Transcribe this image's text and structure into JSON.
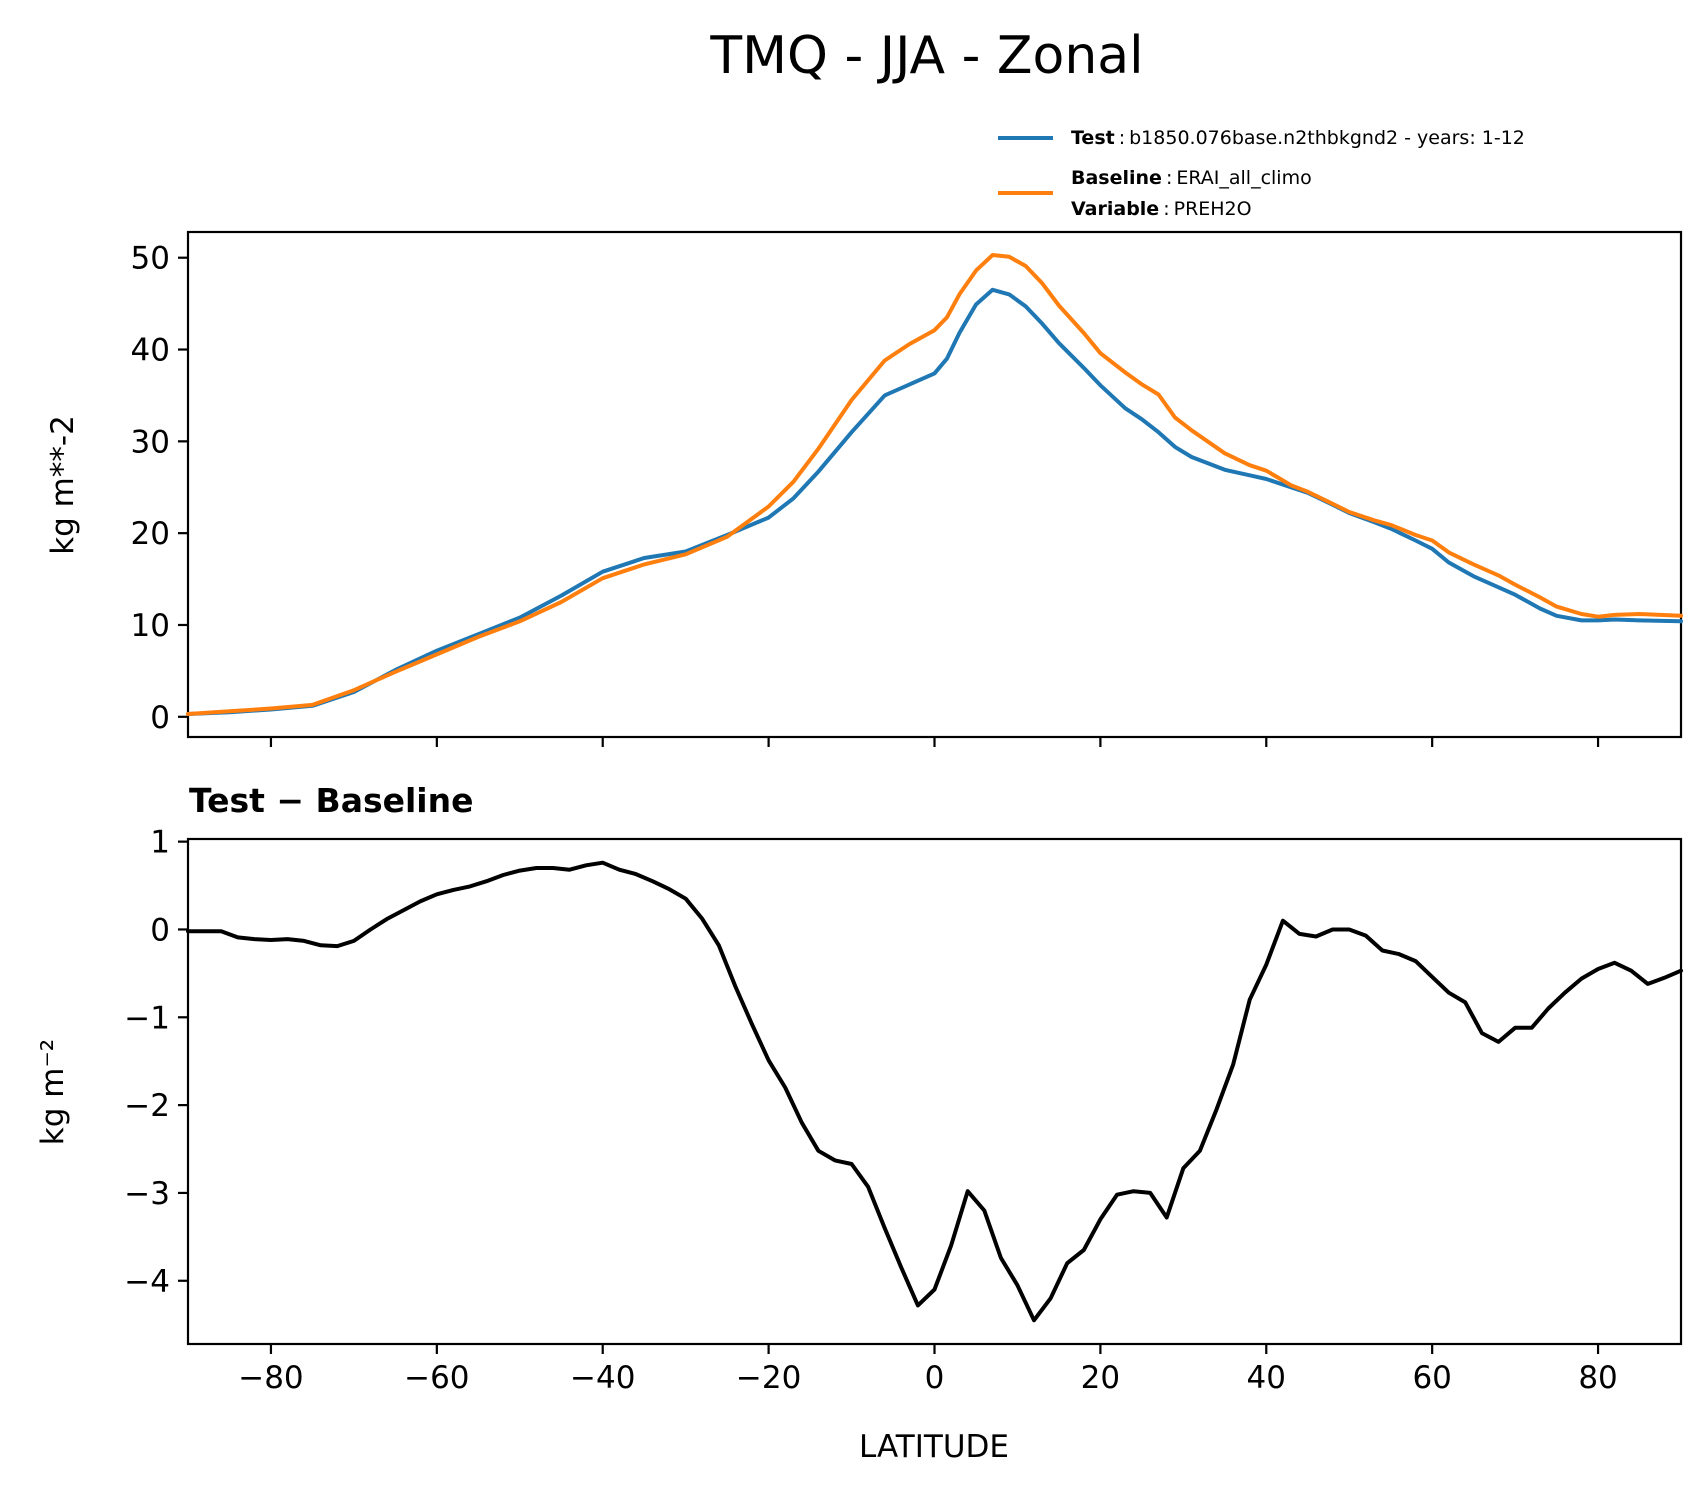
{
  "chart_data": [
    {
      "type": "line",
      "title": "TMQ - JJA - Zonal",
      "ylabel": "kg m**-2",
      "xlabel": "",
      "xlim": [
        -90,
        90
      ],
      "ylim": [
        -2.2,
        52.8
      ],
      "xticks": [
        -80,
        -60,
        -40,
        -20,
        0,
        20,
        40,
        60,
        80
      ],
      "yticks": [
        0,
        10,
        20,
        30,
        40,
        50
      ],
      "ytick_labels": [
        "0",
        "10",
        "20",
        "30",
        "40",
        "50"
      ],
      "grid": false,
      "legend_position": "top-right",
      "legend": [
        {
          "key": "Test",
          "sep": ":",
          "value": "b1850.076base.n2thbkgnd2 - years: 1-12"
        },
        {
          "key": "Baseline",
          "sep": ":",
          "value": "ERAI_all_climo"
        },
        {
          "key": "Variable",
          "sep": ":",
          "value": "PREH2O"
        }
      ],
      "series": [
        {
          "name": "Test",
          "color": "#1f77b4",
          "x": [
            -90,
            -85,
            -80,
            -75,
            -70,
            -65,
            -60,
            -55,
            -50,
            -45,
            -40,
            -35,
            -30,
            -25,
            -20,
            -17,
            -14,
            -10,
            -6,
            -3,
            0,
            1.5,
            3,
            5,
            7,
            9,
            11,
            13,
            15,
            18,
            20,
            23,
            25,
            27,
            29,
            31,
            35,
            38,
            40,
            43,
            45,
            48,
            50,
            53,
            55,
            58,
            60,
            62,
            65,
            68,
            70,
            73,
            75,
            78,
            80,
            82,
            85,
            90
          ],
          "values": [
            0.3,
            0.5,
            0.8,
            1.2,
            2.7,
            5.1,
            7.2,
            9.0,
            10.8,
            13.2,
            15.8,
            17.3,
            18.0,
            19.8,
            21.7,
            23.8,
            26.7,
            31.0,
            35.0,
            36.2,
            37.4,
            39.0,
            41.8,
            44.9,
            46.5,
            46.0,
            44.7,
            42.8,
            40.7,
            38.0,
            36.1,
            33.6,
            32.4,
            31.0,
            29.4,
            28.3,
            26.9,
            26.3,
            25.9,
            25.0,
            24.4,
            23.1,
            22.2,
            21.2,
            20.5,
            19.2,
            18.3,
            16.8,
            15.3,
            14.1,
            13.3,
            11.8,
            11.0,
            10.5,
            10.5,
            10.6,
            10.5,
            10.4
          ]
        },
        {
          "name": "Baseline",
          "color": "#ff7f0e",
          "x": [
            -90,
            -85,
            -80,
            -75,
            -70,
            -65,
            -60,
            -55,
            -50,
            -45,
            -40,
            -35,
            -30,
            -25,
            -20,
            -17,
            -14,
            -10,
            -6,
            -3,
            0,
            1.5,
            3,
            5,
            7,
            9,
            11,
            13,
            15,
            18,
            20,
            23,
            25,
            27,
            29,
            31,
            35,
            38,
            40,
            43,
            45,
            48,
            50,
            53,
            55,
            58,
            60,
            62,
            65,
            68,
            70,
            73,
            75,
            78,
            80,
            82,
            85,
            90
          ],
          "values": [
            0.3,
            0.6,
            0.9,
            1.3,
            2.9,
            4.9,
            6.8,
            8.7,
            10.4,
            12.5,
            15.1,
            16.6,
            17.7,
            19.6,
            22.9,
            25.6,
            29.2,
            34.5,
            38.8,
            40.6,
            42.1,
            43.5,
            46.0,
            48.6,
            50.3,
            50.1,
            49.1,
            47.2,
            44.8,
            41.8,
            39.6,
            37.5,
            36.2,
            35.1,
            32.6,
            31.2,
            28.7,
            27.4,
            26.8,
            25.2,
            24.5,
            23.2,
            22.3,
            21.4,
            20.9,
            19.8,
            19.2,
            17.9,
            16.6,
            15.4,
            14.4,
            13.0,
            12.0,
            11.2,
            10.9,
            11.1,
            11.2,
            11.0
          ]
        }
      ]
    },
    {
      "type": "line",
      "title": "Test − Baseline",
      "ylabel": "kg m⁻²",
      "xlabel": "LATITUDE",
      "xlim": [
        -90,
        90
      ],
      "ylim": [
        -4.72,
        1.03
      ],
      "xticks": [
        -80,
        -60,
        -40,
        -20,
        0,
        20,
        40,
        60,
        80
      ],
      "xtick_labels": [
        "−80",
        "−60",
        "−40",
        "−20",
        "0",
        "20",
        "40",
        "60",
        "80"
      ],
      "yticks": [
        1,
        0,
        -1,
        -2,
        -3,
        -4
      ],
      "ytick_labels": [
        "1",
        "0",
        "−1",
        "−2",
        "−3",
        "−4"
      ],
      "grid": false,
      "series": [
        {
          "name": "Test − Baseline",
          "color": "#000000",
          "x": [
            -90,
            -86,
            -84,
            -82,
            -80,
            -78,
            -76,
            -74,
            -72,
            -70,
            -68,
            -66,
            -64,
            -62,
            -60,
            -58,
            -56,
            -54,
            -52,
            -50,
            -48,
            -46,
            -44,
            -42,
            -40,
            -38,
            -36,
            -34,
            -32,
            -30,
            -28,
            -26,
            -24,
            -22,
            -20,
            -18,
            -16,
            -14,
            -12,
            -10,
            -8,
            -6,
            -4,
            -2,
            0,
            2,
            4,
            6,
            8,
            10,
            12,
            14,
            16,
            18,
            20,
            22,
            24,
            26,
            28,
            30,
            32,
            34,
            36,
            38,
            40,
            42,
            44,
            46,
            48,
            50,
            52,
            54,
            56,
            58,
            60,
            62,
            64,
            66,
            68,
            70,
            72,
            74,
            76,
            78,
            80,
            82,
            84,
            86,
            88,
            90
          ],
          "values": [
            -0.02,
            -0.02,
            -0.09,
            -0.11,
            -0.12,
            -0.11,
            -0.13,
            -0.18,
            -0.19,
            -0.13,
            0.0,
            0.12,
            0.22,
            0.32,
            0.4,
            0.45,
            0.49,
            0.55,
            0.62,
            0.67,
            0.7,
            0.7,
            0.68,
            0.73,
            0.76,
            0.68,
            0.63,
            0.55,
            0.46,
            0.35,
            0.12,
            -0.18,
            -0.65,
            -1.08,
            -1.49,
            -1.8,
            -2.2,
            -2.52,
            -2.63,
            -2.67,
            -2.93,
            -3.4,
            -3.85,
            -4.28,
            -4.1,
            -3.6,
            -2.98,
            -3.2,
            -3.74,
            -4.05,
            -4.45,
            -4.2,
            -3.8,
            -3.65,
            -3.3,
            -3.02,
            -2.98,
            -3.0,
            -3.28,
            -2.72,
            -2.52,
            -2.05,
            -1.54,
            -0.8,
            -0.4,
            0.1,
            -0.05,
            -0.08,
            0.0,
            0.0,
            -0.07,
            -0.24,
            -0.28,
            -0.36,
            -0.54,
            -0.72,
            -0.83,
            -1.18,
            -1.28,
            -1.12,
            -1.12,
            -0.9,
            -0.72,
            -0.56,
            -0.45,
            -0.38,
            -0.47,
            -0.62,
            -0.55,
            -0.47
          ]
        }
      ]
    }
  ]
}
